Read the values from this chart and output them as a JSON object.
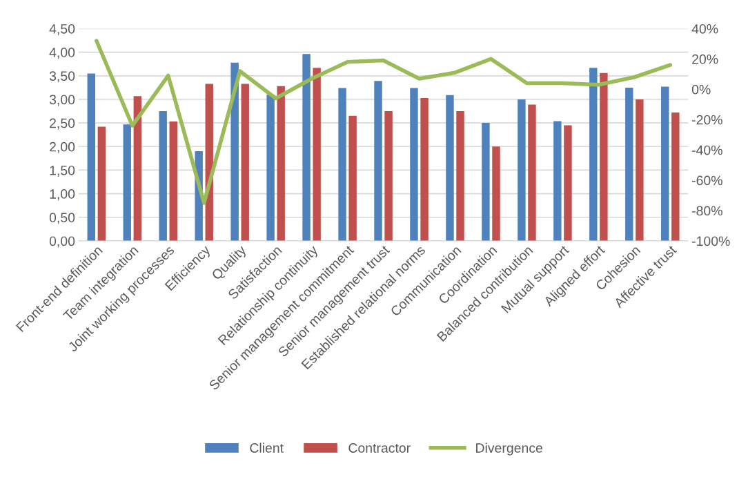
{
  "chart_data": {
    "type": "bar",
    "categories": [
      "Front-end definition",
      "Team integration",
      "Joint working processes",
      "Efficiency",
      "Quality",
      "Satisfaction",
      "Relationship continuity",
      "Senior management commitment",
      "Senior management trust",
      "Established relational norms",
      "Communication",
      "Coordination",
      "Balanced contribution",
      "Mutual support",
      "Aligned effort",
      "Cohesion",
      "Affective trust"
    ],
    "series": [
      {
        "name": "Client",
        "color": "#4f81bd",
        "values": [
          3.55,
          2.47,
          2.75,
          1.9,
          3.78,
          3.1,
          3.96,
          3.24,
          3.39,
          3.24,
          3.09,
          2.5,
          3.0,
          2.54,
          3.67,
          3.25,
          3.27
        ]
      },
      {
        "name": "Contractor",
        "color": "#c0504d",
        "values": [
          2.42,
          3.07,
          2.53,
          3.33,
          3.33,
          3.28,
          3.67,
          2.65,
          2.75,
          3.03,
          2.75,
          2.0,
          2.89,
          2.45,
          3.56,
          3.0,
          2.72
        ]
      },
      {
        "name": "Divergence",
        "color": "#9bbb59",
        "type": "line",
        "axis": "y2",
        "values": [
          32,
          -24,
          9,
          -75,
          12,
          -6,
          7,
          18,
          19,
          7,
          11,
          20,
          4,
          4,
          3,
          8,
          16
        ]
      }
    ],
    "ylim": [
      0,
      4.5
    ],
    "yticks": [
      {
        "value": 0,
        "label": "0,00"
      },
      {
        "value": 0.5,
        "label": "0,50"
      },
      {
        "value": 1,
        "label": "1,00"
      },
      {
        "value": 1.5,
        "label": "1,50"
      },
      {
        "value": 2,
        "label": "2,00"
      },
      {
        "value": 2.5,
        "label": "2,50"
      },
      {
        "value": 3,
        "label": "3,00"
      },
      {
        "value": 3.5,
        "label": "3,50"
      },
      {
        "value": 4,
        "label": "4,00"
      },
      {
        "value": 4.5,
        "label": "4,50"
      }
    ],
    "y2lim": [
      -100,
      40
    ],
    "y2ticks": [
      {
        "value": -100,
        "label": "-100%"
      },
      {
        "value": -80,
        "label": "-80%"
      },
      {
        "value": -60,
        "label": "-60%"
      },
      {
        "value": -40,
        "label": "-40%"
      },
      {
        "value": -20,
        "label": "-20%"
      },
      {
        "value": 0,
        "label": "0%"
      },
      {
        "value": 20,
        "label": "20%"
      },
      {
        "value": 40,
        "label": "40%"
      }
    ],
    "grid": "y",
    "legend": "bottom",
    "marker": "none",
    "line_style": "solid"
  }
}
